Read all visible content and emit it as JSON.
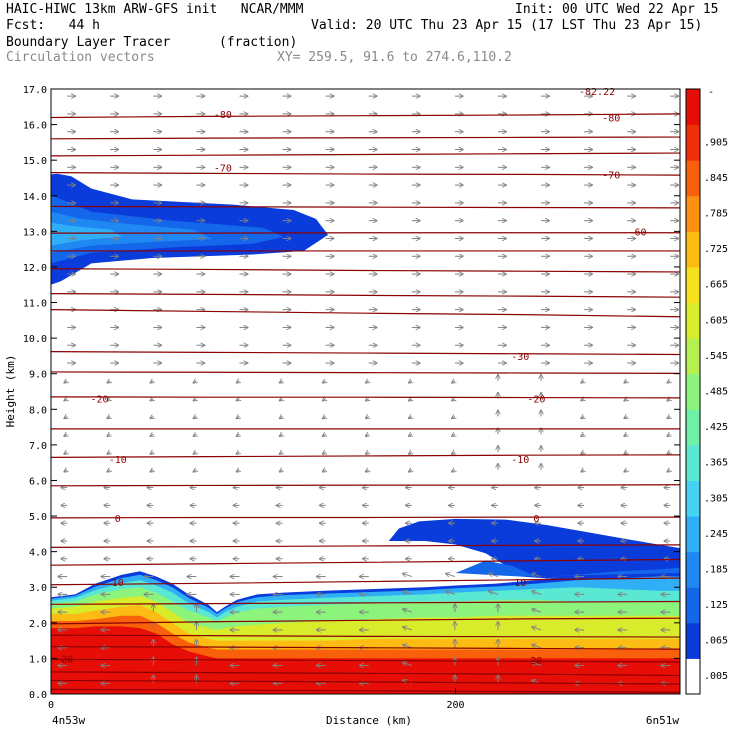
{
  "header": {
    "line1_left": "HAIC-HIWC 13km ARW-GFS init   NCAR/MMM",
    "line1_right": "Init: 00 UTC Wed 22 Apr 15",
    "line2_left": "Fcst:   44 h",
    "line2_right": "Valid: 20 UTC Thu 23 Apr 15 (17 LST Thu 23 Apr 15)",
    "line3_left": "Boundary Layer Tracer",
    "line3_mid": "(fraction)",
    "line4_left": "Circulation vectors",
    "line4_mid": "XY= 259.5, 91.6 to 274.6,110.2"
  },
  "chart_data": {
    "type": "heatmap",
    "ylabel": "Height (km)",
    "xlabel": "Distance (km)",
    "ylim": [
      0,
      17
    ],
    "xlim": [
      0,
      311
    ],
    "yticks": [
      "0.0",
      "1.0",
      "2.0",
      "3.0",
      "4.0",
      "5.0",
      "6.0",
      "7.0",
      "8.0",
      "9.0",
      "10.0",
      "11.0",
      "12.0",
      "13.0",
      "14.0",
      "15.0",
      "16.0",
      "17.0"
    ],
    "xticks": [
      {
        "x": 0,
        "label": "0"
      },
      {
        "x": 200,
        "label": "200"
      }
    ],
    "endpoint_labels": {
      "left": "4n53w",
      "right": "6n51w"
    },
    "colorbar": {
      "labels": [
        ".005",
        ".065",
        ".125",
        ".185",
        ".245",
        ".305",
        ".365",
        ".425",
        ".485",
        ".545",
        ".605",
        ".665",
        ".725",
        ".785",
        ".845",
        ".905"
      ],
      "top_label": "-",
      "colors": [
        "#ffffff",
        "#0a3cdc",
        "#1466ea",
        "#2088f2",
        "#30aef6",
        "#46d2f2",
        "#5ae8d2",
        "#6ef0a6",
        "#8cf47c",
        "#b4f050",
        "#d8ec2c",
        "#f6e21c",
        "#fcbc14",
        "#fc9010",
        "#f8600c",
        "#ee300a",
        "#e80e08"
      ]
    },
    "contours": {
      "levels_labeled": [
        "-80",
        "-70",
        "-60",
        "-30",
        "-20",
        "-10",
        "0",
        "10",
        "20"
      ],
      "label_text_extra": "-82.22",
      "lines": [
        {
          "values": [
            0.13,
            0.11,
            0.09,
            0.07,
            0.05
          ]
        },
        {
          "values": [
            0.38,
            0.36,
            0.34,
            0.31,
            0.28
          ]
        },
        {
          "values": [
            0.62,
            0.6,
            0.58,
            0.56,
            0.52
          ]
        },
        {
          "values": [
            0.97,
            0.96,
            0.94,
            0.92,
            0.9
          ]
        },
        {
          "values": [
            1.33,
            1.32,
            1.3,
            1.28,
            1.26
          ]
        },
        {
          "values": [
            1.65,
            1.64,
            1.62,
            1.61,
            1.6
          ]
        },
        {
          "values": [
            1.97,
            2.03,
            2.07,
            2.11,
            2.13
          ]
        },
        {
          "values": [
            2.52,
            2.54,
            2.56,
            2.58,
            2.6
          ]
        },
        {
          "values": [
            3.07,
            3.11,
            3.16,
            3.21,
            3.26
          ]
        },
        {
          "values": [
            3.62,
            3.66,
            3.7,
            3.74,
            3.78
          ]
        },
        {
          "values": [
            4.12,
            4.14,
            4.16,
            4.18,
            4.19
          ]
        },
        {
          "values": [
            4.95,
            4.96,
            4.96,
            4.97,
            4.97
          ]
        },
        {
          "values": [
            5.85,
            5.86,
            5.87,
            5.87,
            5.88
          ]
        },
        {
          "values": [
            6.65,
            6.67,
            6.69,
            6.71,
            6.72
          ]
        },
        {
          "values": [
            7.45,
            7.45,
            7.45,
            7.45,
            7.45
          ]
        },
        {
          "values": [
            8.35,
            8.34,
            8.34,
            8.33,
            8.32
          ]
        },
        {
          "values": [
            9.05,
            9.04,
            9.03,
            9.02,
            9.01
          ]
        },
        {
          "values": [
            9.62,
            9.6,
            9.58,
            9.56,
            9.54
          ]
        },
        {
          "values": [
            10.8,
            10.75,
            10.7,
            10.66,
            10.6
          ]
        },
        {
          "values": [
            11.25,
            11.23,
            11.2,
            11.18,
            11.15
          ]
        },
        {
          "values": [
            11.95,
            11.93,
            11.9,
            11.88,
            11.86
          ]
        },
        {
          "values": [
            12.45,
            12.45,
            12.45,
            12.45,
            12.45
          ]
        },
        {
          "values": [
            12.95,
            12.95,
            12.96,
            12.96,
            12.96
          ]
        },
        {
          "values": [
            13.7,
            13.69,
            13.68,
            13.67,
            13.66
          ]
        },
        {
          "values": [
            14.65,
            14.63,
            14.61,
            14.6,
            14.58
          ]
        },
        {
          "values": [
            15.12,
            15.14,
            15.16,
            15.18,
            15.2
          ]
        },
        {
          "values": [
            15.6,
            15.62,
            15.63,
            15.64,
            15.65
          ]
        },
        {
          "values": [
            16.2,
            16.23,
            16.25,
            16.27,
            16.3
          ]
        }
      ],
      "labels": [
        {
          "text": "-80",
          "x": 85,
          "y": 16.3
        },
        {
          "text": "-80",
          "x": 277,
          "y": 16.2
        },
        {
          "text": "-70",
          "x": 85,
          "y": 14.8
        },
        {
          "text": "-70",
          "x": 277,
          "y": 14.6
        },
        {
          "text": "-60",
          "x": 290,
          "y": 13.0
        },
        {
          "text": "-30",
          "x": 232,
          "y": 9.5
        },
        {
          "text": "-20",
          "x": 24,
          "y": 8.3
        },
        {
          "text": "-20",
          "x": 240,
          "y": 8.3
        },
        {
          "text": "-10",
          "x": 33,
          "y": 6.6
        },
        {
          "text": "-10",
          "x": 232,
          "y": 6.6
        },
        {
          "text": "0",
          "x": 33,
          "y": 4.95
        },
        {
          "text": "0",
          "x": 240,
          "y": 4.95
        },
        {
          "text": "10",
          "x": 33,
          "y": 3.15
        },
        {
          "text": "10",
          "x": 232,
          "y": 3.15
        },
        {
          "text": "20",
          "x": 8,
          "y": 1.0
        },
        {
          "text": "20",
          "x": 240,
          "y": 0.95
        },
        {
          "text": "-82.22",
          "x": 270,
          "y": 16.95
        }
      ]
    },
    "tracer_regions": [
      {
        "name": "lower-layer",
        "x": [
          0,
          12,
          22,
          35,
          44,
          52,
          60,
          68,
          78,
          82,
          86,
          92,
          102,
          115,
          135,
          160,
          185,
          200,
          220,
          240,
          260,
          280,
          300,
          311
        ],
        "top": [
          2.72,
          2.8,
          3.1,
          3.35,
          3.45,
          3.3,
          3.1,
          2.8,
          2.5,
          2.3,
          2.45,
          2.65,
          2.8,
          2.85,
          2.9,
          2.95,
          3.0,
          3.05,
          3.1,
          3.2,
          3.35,
          3.5,
          3.6,
          3.65
        ],
        "bands": [
          {
            "level": 16,
            "tops": [
              1.85,
              1.85,
              1.9,
              1.9,
              1.85,
              1.7,
              1.4,
              1.2,
              1.05,
              1.0,
              1.0,
              1.0,
              1.0,
              1.0,
              1.0,
              1.0,
              1.0,
              1.0,
              1.0,
              1.0,
              1.0,
              1.0,
              1.0,
              1.0
            ]
          },
          {
            "level": 14,
            "tops": [
              2.05,
              2.05,
              2.1,
              2.2,
              2.2,
              2.0,
              1.7,
              1.45,
              1.3,
              1.25,
              1.25,
              1.25,
              1.25,
              1.25,
              1.25,
              1.25,
              1.25,
              1.25,
              1.25,
              1.25,
              1.25,
              1.25,
              1.25,
              1.25
            ]
          },
          {
            "level": 12,
            "tops": [
              2.25,
              2.25,
              2.35,
              2.45,
              2.5,
              2.3,
              2.0,
              1.7,
              1.55,
              1.5,
              1.5,
              1.5,
              1.5,
              1.5,
              1.5,
              1.55,
              1.55,
              1.55,
              1.55,
              1.55,
              1.55,
              1.55,
              1.55,
              1.55
            ]
          },
          {
            "level": 10,
            "tops": [
              2.4,
              2.45,
              2.6,
              2.7,
              2.75,
              2.6,
              2.3,
              2.0,
              1.85,
              1.8,
              1.85,
              1.9,
              1.95,
              2.0,
              2.05,
              2.1,
              2.15,
              2.15,
              2.2,
              2.2,
              2.2,
              2.2,
              2.2,
              2.2
            ]
          },
          {
            "level": 8,
            "tops": [
              2.55,
              2.6,
              2.8,
              2.95,
              3.0,
              2.85,
              2.6,
              2.35,
              2.15,
              2.05,
              2.15,
              2.3,
              2.4,
              2.45,
              2.5,
              2.55,
              2.6,
              2.6,
              2.65,
              2.65,
              2.6,
              2.6,
              2.6,
              2.6
            ]
          },
          {
            "level": 6,
            "tops": [
              2.62,
              2.7,
              2.92,
              3.12,
              3.2,
              3.05,
              2.85,
              2.55,
              2.3,
              2.15,
              2.3,
              2.45,
              2.6,
              2.65,
              2.7,
              2.75,
              2.8,
              2.85,
              2.9,
              2.95,
              3.0,
              2.95,
              2.9,
              2.9
            ]
          },
          {
            "level": 4,
            "tops": [
              2.68,
              2.76,
              3.02,
              3.26,
              3.35,
              3.2,
              3.0,
              2.7,
              2.42,
              2.25,
              2.4,
              2.58,
              2.72,
              2.78,
              2.82,
              2.87,
              2.92,
              2.97,
              3.02,
              3.1,
              3.2,
              3.25,
              3.3,
              3.3
            ]
          }
        ]
      },
      {
        "name": "mid-plume",
        "blob": [
          [
            167,
            4.3
          ],
          [
            172,
            4.65
          ],
          [
            182,
            4.85
          ],
          [
            200,
            4.92
          ],
          [
            225,
            4.9
          ],
          [
            245,
            4.75
          ],
          [
            265,
            4.55
          ],
          [
            285,
            4.35
          ],
          [
            300,
            4.2
          ],
          [
            311,
            4.1
          ],
          [
            311,
            3.4
          ],
          [
            290,
            3.4
          ],
          [
            265,
            3.35
          ],
          [
            245,
            3.25
          ],
          [
            232,
            3.3
          ],
          [
            225,
            3.6
          ],
          [
            215,
            3.95
          ],
          [
            200,
            4.2
          ],
          [
            185,
            4.3
          ],
          [
            167,
            4.3
          ]
        ],
        "inner": [
          [
            200,
            3.4
          ],
          [
            215,
            3.75
          ],
          [
            228,
            3.6
          ],
          [
            240,
            3.3
          ],
          [
            260,
            3.35
          ],
          [
            280,
            3.45
          ],
          [
            300,
            3.5
          ],
          [
            311,
            3.55
          ],
          [
            311,
            3.4
          ],
          [
            232,
            3.3
          ],
          [
            200,
            3.4
          ]
        ]
      },
      {
        "name": "upper-plume",
        "blob": [
          [
            0,
            11.5
          ],
          [
            5,
            11.6
          ],
          [
            20,
            12.1
          ],
          [
            50,
            12.25
          ],
          [
            100,
            12.35
          ],
          [
            125,
            12.45
          ],
          [
            137,
            12.9
          ],
          [
            131,
            13.35
          ],
          [
            120,
            13.6
          ],
          [
            90,
            13.75
          ],
          [
            40,
            13.9
          ],
          [
            20,
            14.2
          ],
          [
            10,
            14.55
          ],
          [
            3,
            14.62
          ],
          [
            0,
            14.6
          ]
        ],
        "inner_layers": [
          {
            "pts": [
              [
                0,
                12.1
              ],
              [
                20,
                12.4
              ],
              [
                60,
                12.55
              ],
              [
                100,
                12.65
              ],
              [
                115,
                12.85
              ],
              [
                105,
                13.1
              ],
              [
                60,
                13.3
              ],
              [
                20,
                13.55
              ],
              [
                5,
                13.9
              ],
              [
                0,
                14.0
              ]
            ],
            "level": 2
          },
          {
            "pts": [
              [
                0,
                12.4
              ],
              [
                20,
                12.6
              ],
              [
                50,
                12.7
              ],
              [
                80,
                12.78
              ],
              [
                70,
                13.05
              ],
              [
                40,
                13.2
              ],
              [
                15,
                13.35
              ],
              [
                0,
                13.55
              ]
            ],
            "level": 3
          },
          {
            "pts": [
              [
                0,
                12.6
              ],
              [
                15,
                12.75
              ],
              [
                35,
                12.85
              ],
              [
                30,
                13.05
              ],
              [
                10,
                13.15
              ],
              [
                0,
                13.25
              ]
            ],
            "level": 4
          }
        ]
      }
    ]
  },
  "colors": {
    "contour": "#8b0000",
    "vector": "#808080",
    "axis": "#000000"
  }
}
